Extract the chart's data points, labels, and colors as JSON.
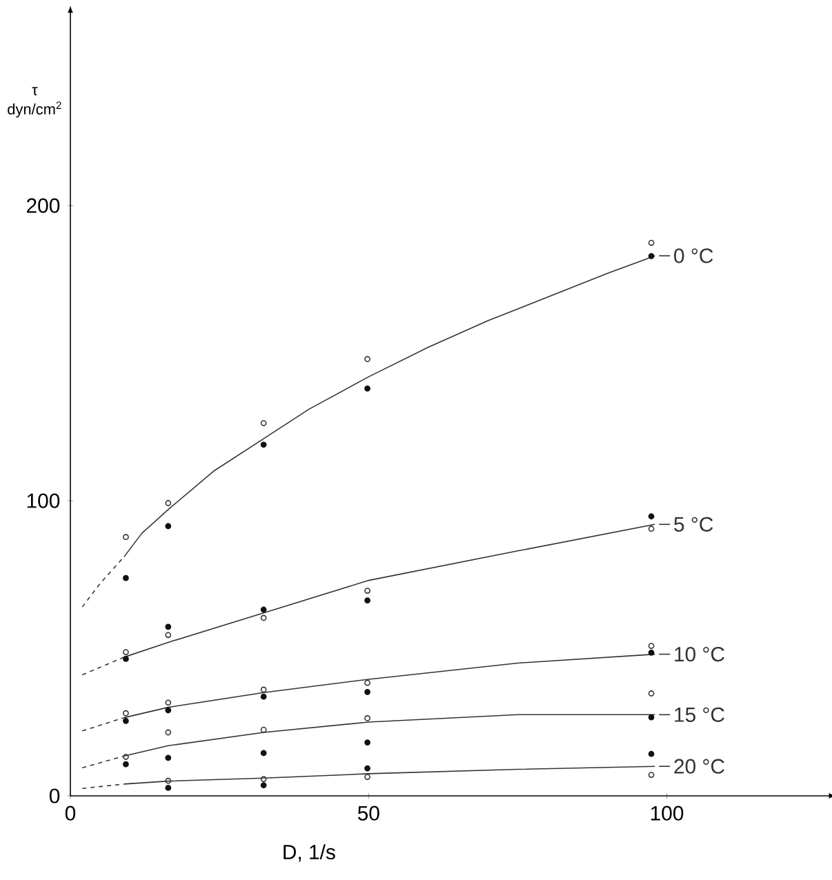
{
  "chart_data": {
    "type": "line",
    "xlabel": "D, 1/s",
    "ylabel": "τ dyn/cm$^{2}$",
    "xlim": [
      0,
      127
    ],
    "ylim": [
      0,
      265
    ],
    "xticks": [
      0,
      50,
      100
    ],
    "yticks": [
      0,
      100,
      200
    ],
    "marker": "none",
    "legend": "right",
    "series": [
      {
        "line_style": "dashed",
        "color": "#333333",
        "x": [
          2,
          5,
          9
        ],
        "values": [
          64,
          72,
          81
        ]
      },
      {
        "line_style": "solid",
        "name": "0 °C",
        "color": "#333333",
        "x": [
          9,
          12,
          16.4,
          24,
          32.4,
          40,
          50,
          60,
          70,
          80,
          90,
          98
        ],
        "values": [
          81,
          89,
          97,
          110,
          121,
          131,
          142,
          152,
          161,
          169,
          177,
          183
        ]
      },
      {
        "line_style": "dashed",
        "color": "#333333",
        "x": [
          2,
          9
        ],
        "values": [
          41,
          47
        ]
      },
      {
        "line_style": "solid",
        "name": "5 °C",
        "color": "#333333",
        "x": [
          9,
          16.4,
          32.4,
          50,
          75,
          98
        ],
        "values": [
          47,
          52,
          62,
          73,
          83,
          92
        ]
      },
      {
        "line_style": "dashed",
        "color": "#333333",
        "x": [
          2,
          9
        ],
        "values": [
          22,
          26.5
        ]
      },
      {
        "line_style": "solid",
        "name": "10 °C",
        "color": "#333333",
        "x": [
          9,
          16.4,
          32.4,
          50,
          75,
          98
        ],
        "values": [
          26.5,
          30,
          35,
          39.5,
          45,
          48
        ]
      },
      {
        "line_style": "dashed",
        "color": "#333333",
        "x": [
          2,
          9
        ],
        "values": [
          9.5,
          13.5
        ]
      },
      {
        "line_style": "solid",
        "name": "15 °C",
        "color": "#333333",
        "x": [
          9,
          16.4,
          32.4,
          50,
          75,
          98
        ],
        "values": [
          13.5,
          17,
          21.5,
          25,
          27.5,
          27.5
        ]
      },
      {
        "line_style": "dashed",
        "color": "#333333",
        "x": [
          2,
          9
        ],
        "values": [
          2.5,
          4
        ]
      },
      {
        "line_style": "solid",
        "name": "20 °C",
        "color": "#333333",
        "x": [
          9,
          16.4,
          32.4,
          50,
          75,
          98
        ],
        "values": [
          4,
          5,
          6,
          7.5,
          9,
          10
        ]
      },
      {
        "type": "scatter",
        "marker": "circle",
        "color": "#333333",
        "x": [
          9.3,
          16.4,
          32.4,
          49.8,
          97.4,
          9.3,
          16.4,
          32.4,
          49.8,
          97.4,
          9.3,
          16.4,
          32.4,
          49.8,
          97.4,
          9.3,
          16.4,
          32.4,
          49.8,
          97.4,
          16.4,
          32.4,
          49.8,
          97.4
        ],
        "values": [
          87.7,
          99.2,
          126.3,
          148,
          187.4,
          48.7,
          54.5,
          60.3,
          69.5,
          90.5,
          28,
          31.6,
          36,
          38.3,
          50.8,
          13.2,
          21.5,
          22.4,
          26.3,
          34.7,
          5.1,
          5.7,
          6.4,
          7.1
        ]
      },
      {
        "type": "scatter",
        "marker": "circle",
        "color": "#111111",
        "x": [
          9.3,
          16.4,
          32.4,
          49.8,
          97.4,
          9.3,
          16.4,
          32.4,
          49.8,
          97.4,
          9.3,
          16.4,
          32.4,
          49.8,
          97.4,
          9.3,
          16.4,
          32.4,
          49.8,
          97.4,
          16.4,
          32.4,
          49.8,
          97.4
        ],
        "values": [
          73.8,
          91.4,
          119,
          138,
          182.9,
          46.4,
          57.3,
          63.1,
          66.2,
          94.7,
          25.4,
          29,
          33.6,
          35.2,
          48.5,
          10.7,
          12.9,
          14.5,
          18.1,
          26.6,
          2.7,
          3.6,
          9.3,
          14.2
        ]
      }
    ]
  }
}
